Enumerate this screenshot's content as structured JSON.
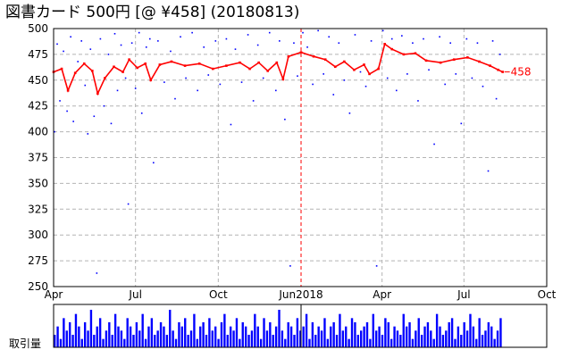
{
  "title": "図書カード 500円 [@ ¥458] (20180813)",
  "colors": {
    "price_line": "#ff0000",
    "trade_points": "#0000ff",
    "volume": "#0000ff",
    "marker_line": "#ff0000",
    "grid": "#b4b4b4",
    "background": "#ffffff"
  },
  "chart_data": [
    {
      "type": "line",
      "title": "図書カード 500円 [@ ¥458] (20180813)",
      "ylim": [
        250,
        500
      ],
      "yticks": [
        500,
        475,
        450,
        425,
        400,
        375,
        350,
        325,
        300,
        275,
        250
      ],
      "xticks": [
        {
          "label": "Apr",
          "date": "2017-04-01"
        },
        {
          "label": "Jul",
          "date": "2017-07-01"
        },
        {
          "label": "Oct",
          "date": "2017-10-01"
        },
        {
          "label": "Jun2018",
          "date": "2018-01-01"
        },
        {
          "label": "Apr",
          "date": "2018-04-01"
        },
        {
          "label": "Jul",
          "date": "2018-07-01"
        },
        {
          "label": "Oct",
          "date": "2018-10-01"
        }
      ],
      "xlim": [
        "2017-04-01",
        "2018-10-01"
      ],
      "grid": true,
      "marker_date": "2018-01-01",
      "last_value_label": "458",
      "series": [
        {
          "style": "line",
          "color": "#ff0000",
          "points": [
            [
              "2017-04-01",
              458
            ],
            [
              "2017-04-10",
              461
            ],
            [
              "2017-04-17",
              440
            ],
            [
              "2017-04-25",
              457
            ],
            [
              "2017-05-05",
              466
            ],
            [
              "2017-05-14",
              459
            ],
            [
              "2017-05-20",
              437
            ],
            [
              "2017-05-28",
              452
            ],
            [
              "2017-06-07",
              463
            ],
            [
              "2017-06-17",
              458
            ],
            [
              "2017-06-24",
              470
            ],
            [
              "2017-07-03",
              462
            ],
            [
              "2017-07-12",
              466
            ],
            [
              "2017-07-18",
              450
            ],
            [
              "2017-07-28",
              465
            ],
            [
              "2017-08-10",
              468
            ],
            [
              "2017-08-25",
              464
            ],
            [
              "2017-09-10",
              466
            ],
            [
              "2017-09-25",
              461
            ],
            [
              "2017-10-10",
              464
            ],
            [
              "2017-10-25",
              467
            ],
            [
              "2017-11-05",
              461
            ],
            [
              "2017-11-15",
              467
            ],
            [
              "2017-11-25",
              459
            ],
            [
              "2017-12-05",
              467
            ],
            [
              "2017-12-12",
              451
            ],
            [
              "2017-12-18",
              473
            ],
            [
              "2018-01-01",
              477
            ],
            [
              "2018-01-15",
              473
            ],
            [
              "2018-01-28",
              470
            ],
            [
              "2018-02-08",
              463
            ],
            [
              "2018-02-18",
              468
            ],
            [
              "2018-03-01",
              460
            ],
            [
              "2018-03-12",
              465
            ],
            [
              "2018-03-18",
              456
            ],
            [
              "2018-03-28",
              461
            ],
            [
              "2018-04-04",
              485
            ],
            [
              "2018-04-12",
              480
            ],
            [
              "2018-04-25",
              475
            ],
            [
              "2018-05-08",
              476
            ],
            [
              "2018-05-20",
              469
            ],
            [
              "2018-06-05",
              467
            ],
            [
              "2018-06-20",
              470
            ],
            [
              "2018-07-05",
              472
            ],
            [
              "2018-07-18",
              468
            ],
            [
              "2018-07-30",
              464
            ],
            [
              "2018-08-08",
              460
            ],
            [
              "2018-08-13",
              458
            ]
          ]
        },
        {
          "style": "points",
          "color": "#0000ff",
          "points": [
            [
              "2017-04-02",
              400
            ],
            [
              "2017-04-05",
              485
            ],
            [
              "2017-04-08",
              430
            ],
            [
              "2017-04-12",
              478
            ],
            [
              "2017-04-16",
              420
            ],
            [
              "2017-04-20",
              492
            ],
            [
              "2017-04-23",
              410
            ],
            [
              "2017-04-28",
              468
            ],
            [
              "2017-05-02",
              488
            ],
            [
              "2017-05-06",
              445
            ],
            [
              "2017-05-09",
              398
            ],
            [
              "2017-05-12",
              480
            ],
            [
              "2017-05-16",
              415
            ],
            [
              "2017-05-19",
              263
            ],
            [
              "2017-05-23",
              490
            ],
            [
              "2017-05-27",
              425
            ],
            [
              "2017-06-01",
              475
            ],
            [
              "2017-06-04",
              408
            ],
            [
              "2017-06-08",
              495
            ],
            [
              "2017-06-11",
              440
            ],
            [
              "2017-06-15",
              484
            ],
            [
              "2017-06-20",
              452
            ],
            [
              "2017-06-23",
              330
            ],
            [
              "2017-06-27",
              486
            ],
            [
              "2017-07-01",
              442
            ],
            [
              "2017-07-05",
              496
            ],
            [
              "2017-07-08",
              418
            ],
            [
              "2017-07-13",
              482
            ],
            [
              "2017-07-17",
              490
            ],
            [
              "2017-07-21",
              370
            ],
            [
              "2017-07-26",
              488
            ],
            [
              "2017-08-02",
              448
            ],
            [
              "2017-08-09",
              478
            ],
            [
              "2017-08-14",
              432
            ],
            [
              "2017-08-20",
              492
            ],
            [
              "2017-08-26",
              452
            ],
            [
              "2017-09-02",
              496
            ],
            [
              "2017-09-08",
              440
            ],
            [
              "2017-09-15",
              482
            ],
            [
              "2017-09-20",
              455
            ],
            [
              "2017-09-28",
              488
            ],
            [
              "2017-10-03",
              446
            ],
            [
              "2017-10-10",
              490
            ],
            [
              "2017-10-15",
              407
            ],
            [
              "2017-10-20",
              480
            ],
            [
              "2017-10-27",
              448
            ],
            [
              "2017-11-03",
              494
            ],
            [
              "2017-11-09",
              430
            ],
            [
              "2017-11-14",
              484
            ],
            [
              "2017-11-20",
              452
            ],
            [
              "2017-11-27",
              496
            ],
            [
              "2017-12-04",
              440
            ],
            [
              "2017-12-08",
              488
            ],
            [
              "2017-12-14",
              412
            ],
            [
              "2017-12-20",
              270
            ],
            [
              "2017-12-24",
              486
            ],
            [
              "2017-12-28",
              454
            ],
            [
              "2018-01-03",
              496
            ],
            [
              "2018-01-08",
              482
            ],
            [
              "2018-01-14",
              446
            ],
            [
              "2018-01-20",
              498
            ],
            [
              "2018-01-26",
              456
            ],
            [
              "2018-02-01",
              492
            ],
            [
              "2018-02-06",
              436
            ],
            [
              "2018-02-12",
              486
            ],
            [
              "2018-02-18",
              450
            ],
            [
              "2018-02-24",
              418
            ],
            [
              "2018-03-02",
              494
            ],
            [
              "2018-03-08",
              458
            ],
            [
              "2018-03-14",
              444
            ],
            [
              "2018-03-20",
              488
            ],
            [
              "2018-03-26",
              270
            ],
            [
              "2018-04-02",
              498
            ],
            [
              "2018-04-07",
              452
            ],
            [
              "2018-04-12",
              490
            ],
            [
              "2018-04-17",
              440
            ],
            [
              "2018-04-23",
              493
            ],
            [
              "2018-04-29",
              456
            ],
            [
              "2018-05-05",
              486
            ],
            [
              "2018-05-11",
              430
            ],
            [
              "2018-05-17",
              490
            ],
            [
              "2018-05-23",
              460
            ],
            [
              "2018-05-29",
              388
            ],
            [
              "2018-06-04",
              492
            ],
            [
              "2018-06-10",
              446
            ],
            [
              "2018-06-16",
              486
            ],
            [
              "2018-06-22",
              456
            ],
            [
              "2018-06-28",
              408
            ],
            [
              "2018-07-04",
              490
            ],
            [
              "2018-07-10",
              452
            ],
            [
              "2018-07-16",
              486
            ],
            [
              "2018-07-22",
              444
            ],
            [
              "2018-07-28",
              362
            ],
            [
              "2018-08-02",
              488
            ],
            [
              "2018-08-06",
              432
            ],
            [
              "2018-08-10",
              475
            ]
          ]
        }
      ]
    },
    {
      "type": "bar",
      "ylabel": "取引量",
      "xlim": [
        "2017-04-01",
        "2018-10-01"
      ],
      "data_end": "2018-08-13",
      "marker_date": "2018-01-01",
      "values": [
        3,
        5,
        2,
        7,
        4,
        6,
        3,
        8,
        5,
        2,
        6,
        4,
        9,
        3,
        5,
        7,
        2,
        4,
        6,
        3,
        8,
        5,
        4,
        2,
        7,
        5,
        3,
        6,
        4,
        8,
        2,
        5,
        7,
        3,
        4,
        6,
        5,
        3,
        9,
        4,
        2,
        6,
        5,
        7,
        3,
        4,
        8,
        2,
        5,
        6,
        3,
        7,
        4,
        5,
        2,
        6,
        8,
        3,
        5,
        4,
        7,
        2,
        6,
        5,
        3,
        4,
        8,
        5,
        2,
        7,
        4,
        6,
        3,
        5,
        9,
        4,
        2,
        6,
        5,
        3,
        7,
        4,
        5,
        8,
        2,
        6,
        3,
        5,
        4,
        7,
        2,
        5,
        6,
        3,
        8,
        4,
        5,
        2,
        7,
        6,
        3,
        4,
        5,
        6,
        2,
        8,
        4,
        5,
        3,
        7,
        6,
        2,
        5,
        4,
        3,
        8,
        5,
        6,
        2,
        4,
        7,
        3,
        5,
        6,
        4,
        2,
        8,
        5,
        3,
        4,
        6,
        7,
        2,
        5,
        3,
        6,
        4,
        8,
        5,
        2,
        7,
        3,
        4,
        6,
        5,
        2,
        4,
        7
      ]
    }
  ]
}
